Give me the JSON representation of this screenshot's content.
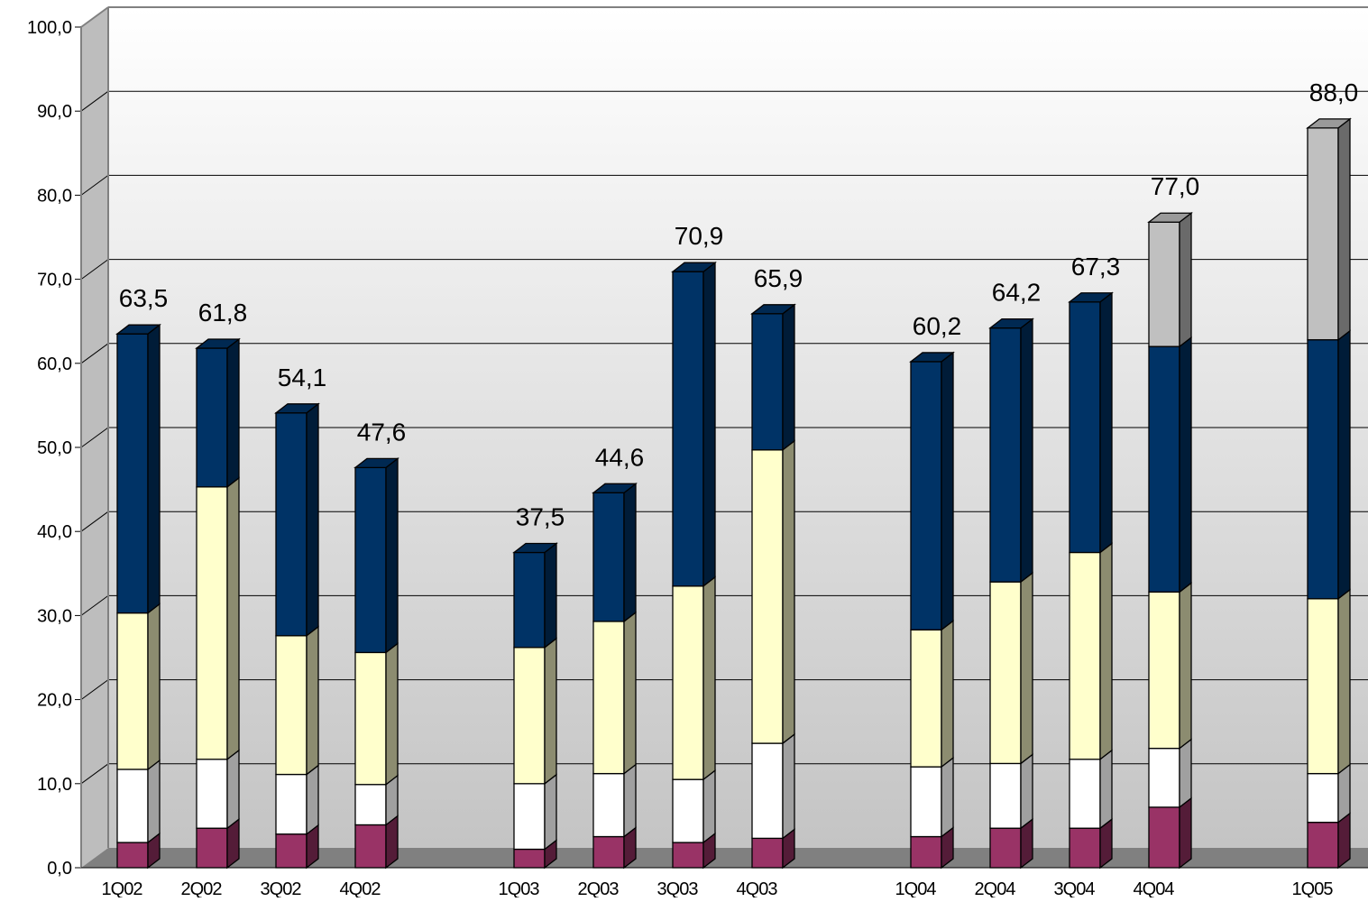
{
  "chart_data": {
    "type": "bar",
    "stacked": true,
    "three_d": true,
    "categories": [
      "1Q02",
      "2Q02",
      "3Q02",
      "4Q02",
      "1Q03",
      "2Q03",
      "3Q03",
      "4Q03",
      "1Q04",
      "2Q04",
      "3Q04",
      "4Q04",
      "1Q05"
    ],
    "totals": [
      63.5,
      61.8,
      54.1,
      47.6,
      37.5,
      44.6,
      70.9,
      65.9,
      60.2,
      64.2,
      67.3,
      77.0,
      88.0
    ],
    "total_labels": [
      "63,5",
      "61,8",
      "54,1",
      "47,6",
      "37,5",
      "44,6",
      "70,9",
      "65,9",
      "60,2",
      "64,2",
      "67,3",
      "77,0",
      "88,0"
    ],
    "series": [
      {
        "color": "#993366",
        "values": [
          3.0,
          4.7,
          4.0,
          5.1,
          2.2,
          3.7,
          3.0,
          3.5,
          3.7,
          4.7,
          4.7,
          7.2,
          5.4
        ]
      },
      {
        "color": "#ffffff",
        "values": [
          8.7,
          8.2,
          7.1,
          4.8,
          7.8,
          7.5,
          7.5,
          11.3,
          8.3,
          7.7,
          8.2,
          7.0,
          5.8
        ]
      },
      {
        "color": "#ffffcc",
        "values": [
          18.6,
          32.4,
          16.5,
          15.7,
          16.2,
          18.1,
          23.0,
          34.9,
          16.3,
          21.6,
          24.6,
          18.6,
          20.8
        ]
      },
      {
        "color": "#003366",
        "values": [
          33.2,
          16.5,
          26.5,
          22.0,
          11.3,
          15.3,
          37.4,
          16.2,
          31.9,
          30.2,
          29.8,
          29.2,
          30.8
        ]
      },
      {
        "color": "#c0c0c0",
        "values": [
          0,
          0,
          0,
          0,
          0,
          0,
          0,
          0,
          0,
          0,
          0,
          14.8,
          25.2
        ]
      }
    ],
    "ylim": [
      0,
      100
    ],
    "yticks": [
      "0,0",
      "10,0",
      "20,0",
      "30,0",
      "40,0",
      "50,0",
      "60,0",
      "70,0",
      "80,0",
      "90,0",
      "100,0"
    ],
    "grid": true
  }
}
